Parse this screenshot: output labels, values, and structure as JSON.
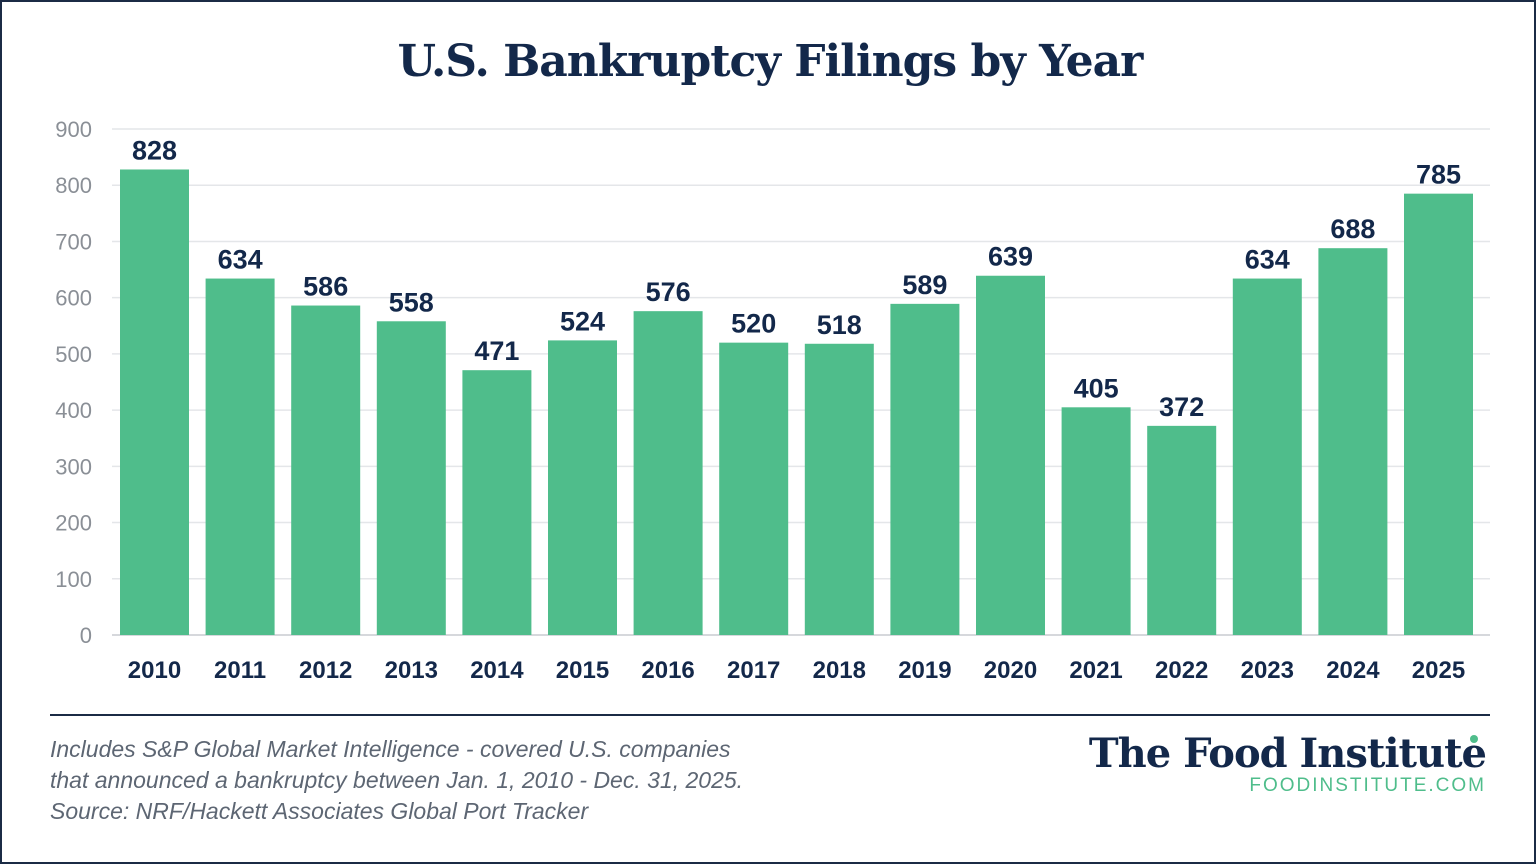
{
  "footnote": {
    "line1": "Includes S&P Global Market Intelligence - covered U.S. companies",
    "line2": "that announced a bankruptcy between Jan. 1, 2010 - Dec. 31, 2025.",
    "line3": "Source: NRF/Hackett Associates Global Port Tracker"
  },
  "logo": {
    "name": "The Food Institute",
    "url": "FOODINSTITUTE.COM"
  },
  "colors": {
    "bar": "#4fbd8b",
    "text": "#13284a",
    "grid": "#e4e6e9",
    "border": "#1b2b45"
  },
  "chart_data": {
    "type": "bar",
    "title": "U.S. Bankruptcy Filings by Year",
    "xlabel": "",
    "ylabel": "",
    "categories": [
      "2010",
      "2011",
      "2012",
      "2013",
      "2014",
      "2015",
      "2016",
      "2017",
      "2018",
      "2019",
      "2020",
      "2021",
      "2022",
      "2023",
      "2024",
      "2025"
    ],
    "values": [
      828,
      634,
      586,
      558,
      471,
      524,
      576,
      520,
      518,
      589,
      639,
      405,
      372,
      634,
      688,
      785
    ],
    "ylim": [
      0,
      900
    ],
    "yticks": [
      0,
      100,
      200,
      300,
      400,
      500,
      600,
      700,
      800,
      900
    ],
    "grid": true,
    "legend": "none",
    "data_labels": true
  }
}
